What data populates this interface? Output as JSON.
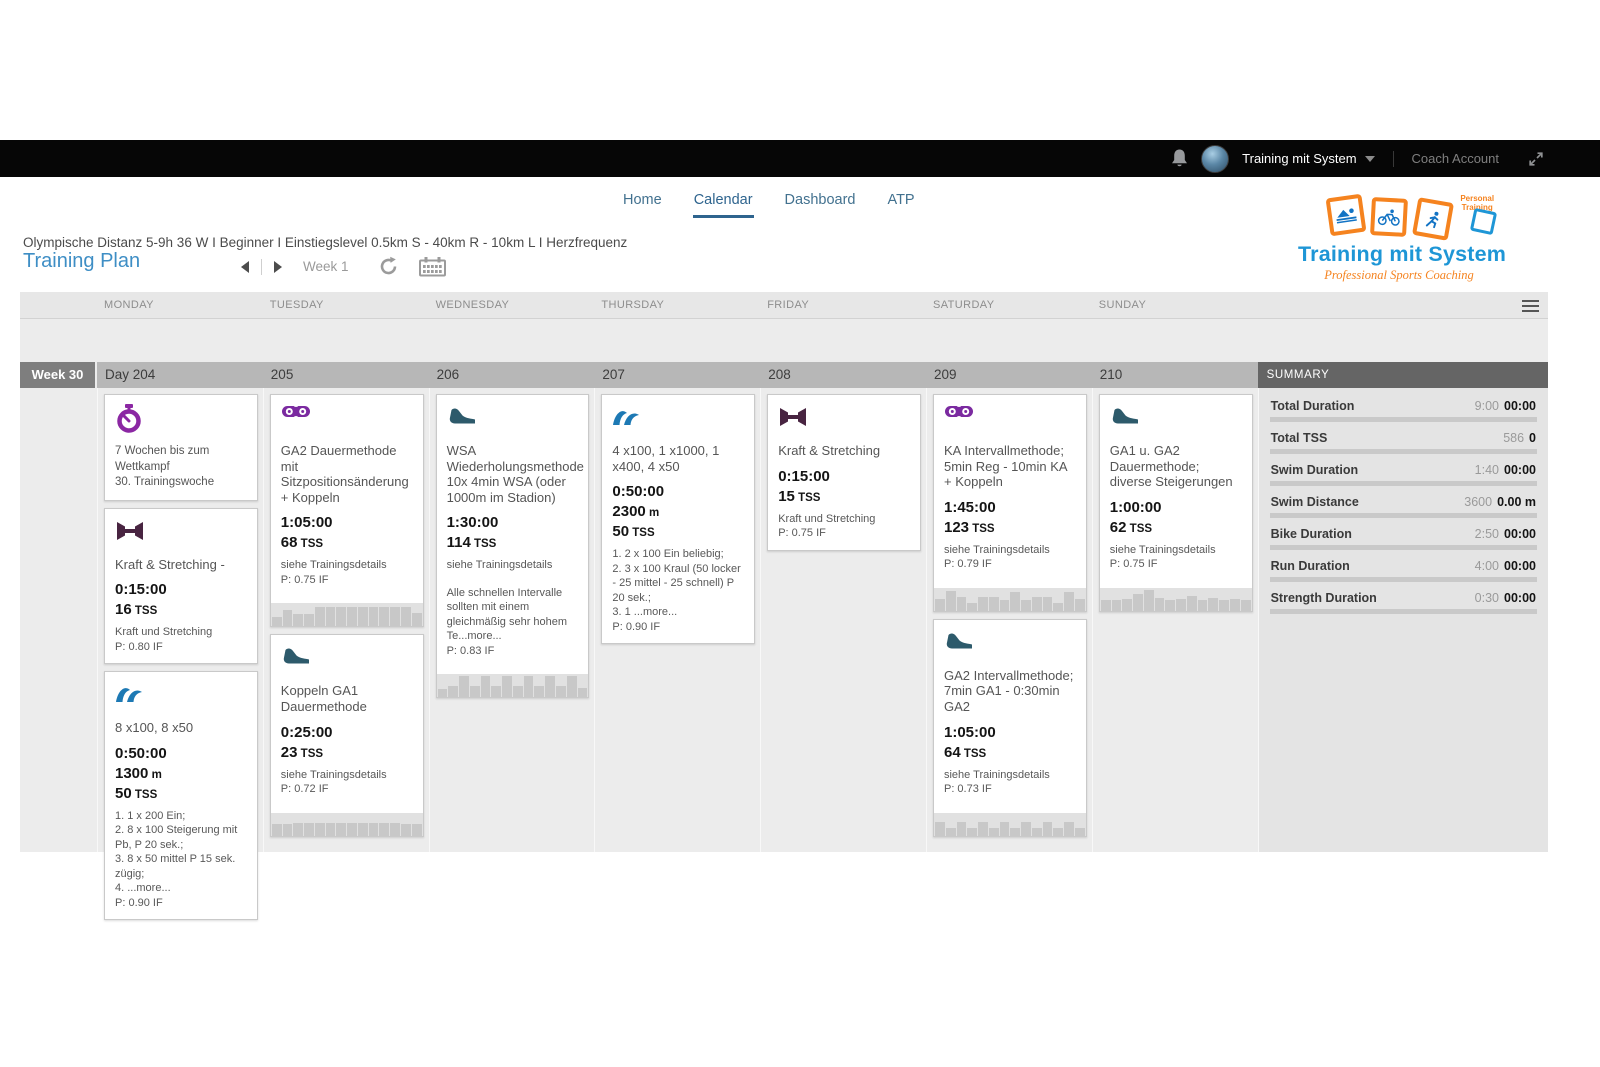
{
  "topbar": {
    "account_name": "Training mit System",
    "account_role": "Coach Account"
  },
  "nav": {
    "items": [
      "Home",
      "Calendar",
      "Dashboard",
      "ATP"
    ],
    "active": "Calendar"
  },
  "plan": {
    "subtitle": "Olympische Distanz 5-9h 36 W I Beginner I Einstiegslevel 0.5km S - 40km R - 10km L I Herzfrequenz",
    "title": "Training Plan",
    "week_selector": "Week 1"
  },
  "logo": {
    "title": "Training mit System",
    "subtitle": "Professional Sports Coaching",
    "badge_line1": "Personal",
    "badge_line2": "Training"
  },
  "colors": {
    "swim": "#1d79b4",
    "bike": "#7b2aa0",
    "run": "#2d5a6b",
    "strength": "#482441",
    "stopwatch": "#8b27a3",
    "accent_blue": "#3e8ec5",
    "logo_orange": "#f5831f",
    "logo_blue": "#1e96d6"
  },
  "calendar": {
    "day_headers": [
      "MONDAY",
      "TUESDAY",
      "WEDNESDAY",
      "THURSDAY",
      "FRIDAY",
      "SATURDAY",
      "SUNDAY"
    ],
    "week_label": "Week 30",
    "day_numbers": [
      "Day 204",
      "205",
      "206",
      "207",
      "208",
      "209",
      "210"
    ],
    "summary_title": "SUMMARY",
    "units": {
      "tss": "TSS",
      "distance": "m"
    },
    "days": [
      {
        "cards": [
          {
            "type": "note",
            "icon": "stopwatch",
            "lines": [
              "7 Wochen bis zum Wettkampf",
              "30. Trainingswoche"
            ]
          },
          {
            "type": "workout",
            "icon": "strength",
            "title": "Kraft & Stretching -",
            "duration": "0:15:00",
            "tss": "16",
            "details": [
              "Kraft und Stretching"
            ],
            "intensity": "P: 0.80 IF"
          },
          {
            "type": "workout",
            "icon": "swim",
            "title": "8 x100, 8 x50",
            "duration": "0:50:00",
            "distance": "1300",
            "tss": "50",
            "details": [
              "1. 1 x 200 Ein;",
              "2. 8 x 100 Steigerung mit Pb, P 20 sek.;",
              "3. 8 x 50 mittel P 15 sek. zügig;",
              "4. ...more..."
            ],
            "intensity": "P: 0.90 IF"
          }
        ]
      },
      {
        "cards": [
          {
            "type": "workout",
            "icon": "bike",
            "title": "GA2 Dauermethode mit Sitzpositionsänderung + Koppeln",
            "duration": "1:05:00",
            "tss": "68",
            "details": [
              "siehe Trainingsdetails"
            ],
            "intensity": "P: 0.75 IF",
            "chart": [
              0.4,
              0.7,
              0.55,
              0.55,
              0.85,
              0.85,
              0.85,
              0.85,
              0.85,
              0.85,
              0.85,
              0.85,
              0.85,
              0.6
            ]
          },
          {
            "type": "workout",
            "icon": "run",
            "title": "Koppeln GA1 Dauermethode",
            "duration": "0:25:00",
            "tss": "23",
            "details": [
              "siehe Trainingsdetails"
            ],
            "intensity": "P: 0.72 IF",
            "chart": [
              0.5,
              0.5,
              0.55,
              0.55,
              0.55,
              0.55,
              0.55,
              0.55,
              0.55,
              0.55,
              0.55,
              0.55,
              0.5,
              0.5
            ]
          }
        ]
      },
      {
        "cards": [
          {
            "type": "workout",
            "icon": "run",
            "title": "WSA Wiederholungsmethode 10x 4min WSA (oder 1000m im Stadion)",
            "duration": "1:30:00",
            "tss": "114",
            "details": [
              "siehe Trainingsdetails",
              "",
              "Alle schnellen Intervalle sollten mit einem gleichmäßig sehr hohem Te...more..."
            ],
            "intensity": "P: 0.83 IF",
            "chart": [
              0.35,
              0.5,
              0.95,
              0.5,
              0.95,
              0.5,
              0.95,
              0.5,
              0.95,
              0.5,
              0.95,
              0.5,
              0.95,
              0.4
            ]
          }
        ]
      },
      {
        "cards": [
          {
            "type": "workout",
            "icon": "swim",
            "title": "4 x100, 1 x1000, 1 x400, 4 x50",
            "duration": "0:50:00",
            "distance": "2300",
            "tss": "50",
            "details": [
              "1. 2 x 100 Ein beliebig;",
              "2. 3 x 100 Kraul (50 locker - 25 mittel - 25 schnell) P 20 sek.;",
              "3. 1 ...more..."
            ],
            "intensity": "P: 0.90 IF"
          }
        ]
      },
      {
        "cards": [
          {
            "type": "workout",
            "icon": "strength",
            "title": "Kraft & Stretching",
            "duration": "0:15:00",
            "tss": "15",
            "details": [
              "Kraft und Stretching"
            ],
            "intensity": "P: 0.75 IF"
          }
        ]
      },
      {
        "cards": [
          {
            "type": "workout",
            "icon": "bike",
            "title": "KA Intervallmethode; 5min Reg - 10min KA + Koppeln",
            "duration": "1:45:00",
            "tss": "123",
            "details": [
              "siehe Trainingsdetails"
            ],
            "intensity": "P: 0.79 IF",
            "chart": [
              0.5,
              0.85,
              0.6,
              0.35,
              0.6,
              0.6,
              0.45,
              0.8,
              0.45,
              0.6,
              0.6,
              0.35,
              0.8,
              0.5
            ]
          },
          {
            "type": "workout",
            "icon": "run",
            "title": "GA2 Intervallmethode; 7min GA1 - 0:30min GA2",
            "duration": "1:05:00",
            "tss": "64",
            "details": [
              "siehe Trainingsdetails"
            ],
            "intensity": "P: 0.73 IF",
            "chart": [
              0.6,
              0.35,
              0.6,
              0.35,
              0.6,
              0.35,
              0.6,
              0.35,
              0.6,
              0.35,
              0.6,
              0.35,
              0.6,
              0.35
            ]
          }
        ]
      },
      {
        "cards": [
          {
            "type": "workout",
            "icon": "run",
            "title": "GA1 u. GA2 Dauermethode; diverse Steigerungen",
            "duration": "1:00:00",
            "tss": "62",
            "details": [
              "siehe Trainingsdetails"
            ],
            "intensity": "P: 0.75 IF",
            "chart": [
              0.45,
              0.45,
              0.5,
              0.75,
              0.9,
              0.55,
              0.45,
              0.5,
              0.65,
              0.45,
              0.55,
              0.45,
              0.5,
              0.45
            ]
          }
        ]
      }
    ],
    "summary_rows": [
      {
        "label": "Total Duration",
        "planned": "9:00",
        "actual": "00:00"
      },
      {
        "label": "Total TSS",
        "planned": "586",
        "actual": "0"
      },
      {
        "label": "Swim Duration",
        "planned": "1:40",
        "actual": "00:00"
      },
      {
        "label": "Swim Distance",
        "planned": "3600",
        "actual": "0.00 m"
      },
      {
        "label": "Bike Duration",
        "planned": "2:50",
        "actual": "00:00"
      },
      {
        "label": "Run Duration",
        "planned": "4:00",
        "actual": "00:00"
      },
      {
        "label": "Strength Duration",
        "planned": "0:30",
        "actual": "00:00"
      }
    ]
  }
}
